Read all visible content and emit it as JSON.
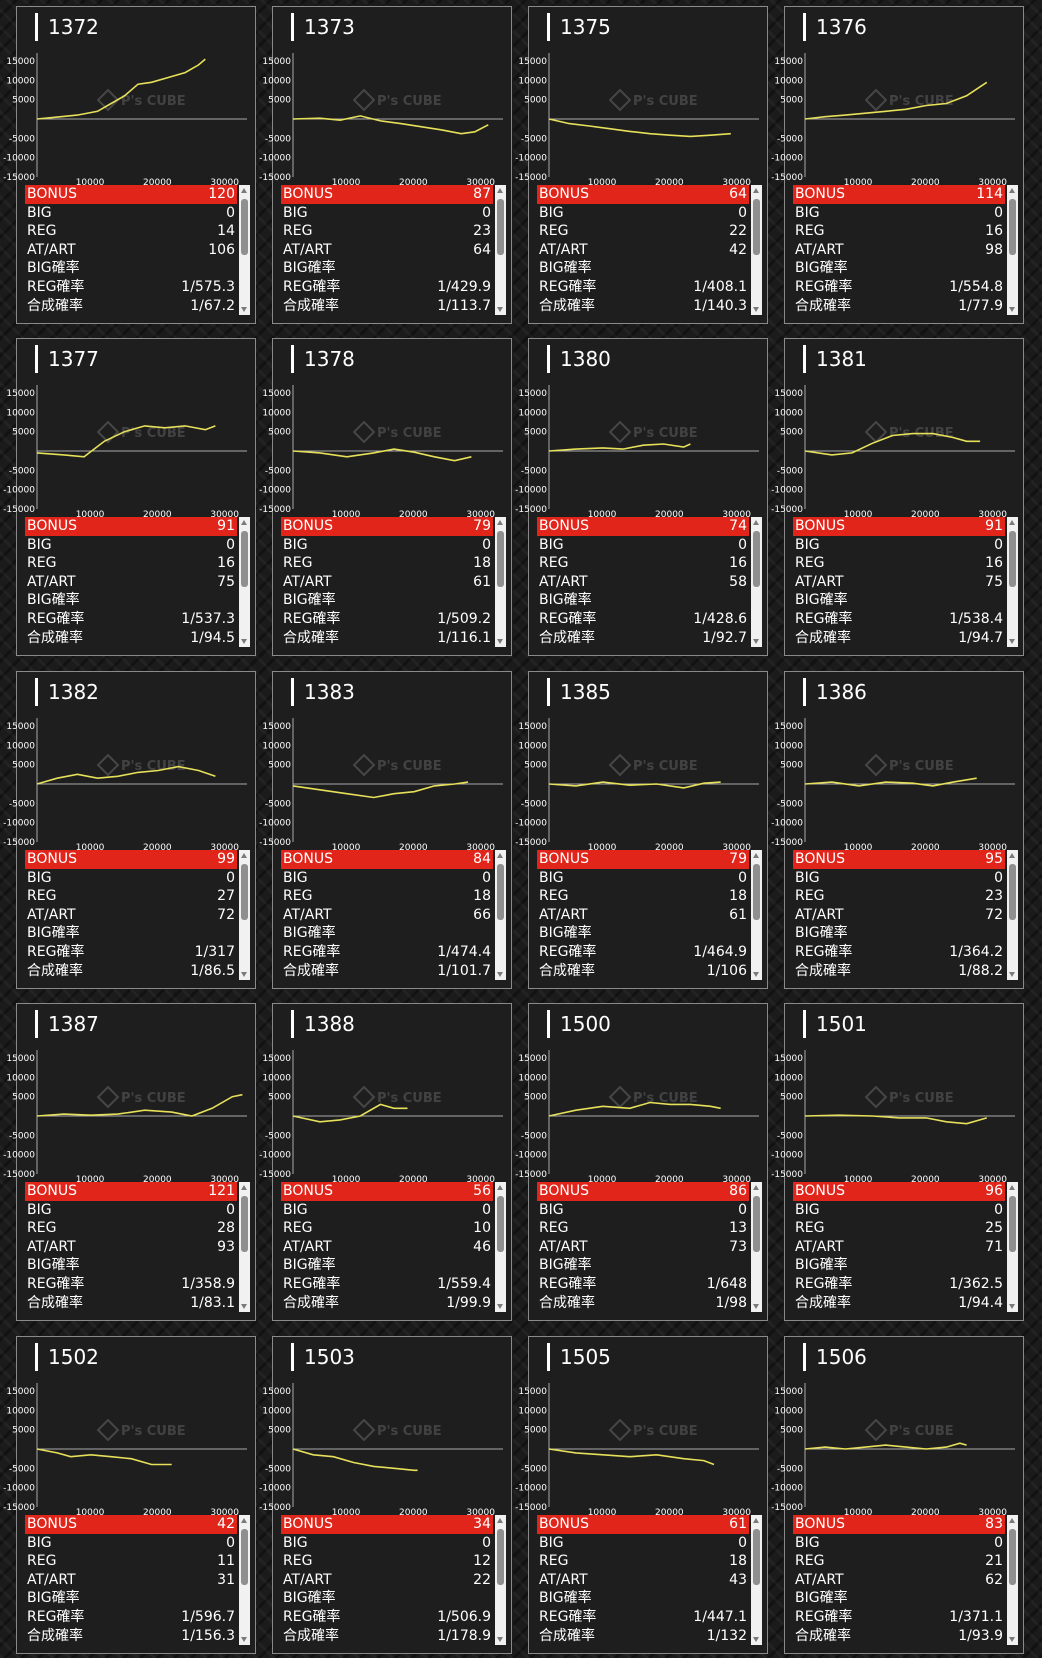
{
  "colors": {
    "accent_bonus": "#e1251b",
    "graph_line": "#e6e05a",
    "background": "#1b1b1b"
  },
  "watermark": {
    "text": "P's CUBE"
  },
  "labels": [
    "BONUS",
    "BIG",
    "REG",
    "AT/ART",
    "BIG確率",
    "REG確率",
    "合成確率"
  ],
  "machines": [
    {
      "id": "1372",
      "stats": {
        "bonus": "120",
        "big": "0",
        "reg": "14",
        "at_art": "106",
        "big_prob": "",
        "reg_prob": "1/575.3",
        "total_prob": "1/67.2"
      },
      "chart_data": {
        "type": "line",
        "x_ticks": [
          "10000",
          "20000",
          "30000"
        ],
        "y_ticks": [
          "15000",
          "10000",
          "5000",
          "-5000",
          "-10000",
          "-15000"
        ],
        "xlim": [
          0,
          30000
        ],
        "ylim": [
          -15000,
          15000
        ],
        "x": [
          0,
          3000,
          6000,
          9000,
          11000,
          13000,
          15000,
          17000,
          20000,
          22000,
          24000,
          25000
        ],
        "y": [
          0,
          500,
          1000,
          2000,
          4000,
          6000,
          9000,
          9500,
          11000,
          12000,
          14000,
          15500
        ]
      }
    },
    {
      "id": "1373",
      "stats": {
        "bonus": "87",
        "big": "0",
        "reg": "23",
        "at_art": "64",
        "big_prob": "",
        "reg_prob": "1/429.9",
        "total_prob": "1/113.7"
      },
      "chart_data": {
        "type": "line",
        "x_ticks": [
          "10000",
          "20000",
          "30000"
        ],
        "y_ticks": [
          "15000",
          "10000",
          "5000",
          "-5000",
          "-10000",
          "-15000"
        ],
        "xlim": [
          0,
          30000
        ],
        "ylim": [
          -15000,
          15000
        ],
        "x": [
          0,
          4000,
          7000,
          10000,
          13000,
          16000,
          19000,
          22000,
          25000,
          27000,
          29000
        ],
        "y": [
          0,
          200,
          -300,
          800,
          -500,
          -1200,
          -2000,
          -2800,
          -3800,
          -3300,
          -1500
        ]
      }
    },
    {
      "id": "1375",
      "stats": {
        "bonus": "64",
        "big": "0",
        "reg": "22",
        "at_art": "42",
        "big_prob": "",
        "reg_prob": "1/408.1",
        "total_prob": "1/140.3"
      },
      "chart_data": {
        "type": "line",
        "x_ticks": [
          "10000",
          "20000",
          "30000"
        ],
        "y_ticks": [
          "15000",
          "10000",
          "5000",
          "-5000",
          "-10000",
          "-15000"
        ],
        "xlim": [
          0,
          30000
        ],
        "ylim": [
          -15000,
          15000
        ],
        "x": [
          0,
          3000,
          6000,
          9000,
          12000,
          15000,
          18000,
          21000,
          24000,
          27000
        ],
        "y": [
          0,
          -1200,
          -1800,
          -2500,
          -3200,
          -3800,
          -4200,
          -4500,
          -4200,
          -3800
        ]
      }
    },
    {
      "id": "1376",
      "stats": {
        "bonus": "114",
        "big": "0",
        "reg": "16",
        "at_art": "98",
        "big_prob": "",
        "reg_prob": "1/554.8",
        "total_prob": "1/77.9"
      },
      "chart_data": {
        "type": "line",
        "x_ticks": [
          "10000",
          "20000",
          "30000"
        ],
        "y_ticks": [
          "15000",
          "10000",
          "5000",
          "-5000",
          "-10000",
          "-15000"
        ],
        "xlim": [
          0,
          30000
        ],
        "ylim": [
          -15000,
          15000
        ],
        "x": [
          0,
          3000,
          6000,
          9000,
          12000,
          15000,
          18000,
          21000,
          24000,
          27000
        ],
        "y": [
          0,
          600,
          1000,
          1500,
          2000,
          2500,
          3500,
          4000,
          6000,
          9500
        ]
      }
    },
    {
      "id": "1377",
      "stats": {
        "bonus": "91",
        "big": "0",
        "reg": "16",
        "at_art": "75",
        "big_prob": "",
        "reg_prob": "1/537.3",
        "total_prob": "1/94.5"
      },
      "chart_data": {
        "type": "line",
        "x_ticks": [
          "10000",
          "20000",
          "30000"
        ],
        "y_ticks": [
          "15000",
          "10000",
          "5000",
          "-5000",
          "-10000",
          "-15000"
        ],
        "xlim": [
          0,
          30000
        ],
        "ylim": [
          -15000,
          15000
        ],
        "x": [
          0,
          4000,
          7000,
          10000,
          13000,
          16000,
          19000,
          22000,
          25000,
          26500
        ],
        "y": [
          -500,
          -1000,
          -1500,
          2500,
          5000,
          6500,
          6000,
          6500,
          5500,
          6500
        ]
      }
    },
    {
      "id": "1378",
      "stats": {
        "bonus": "79",
        "big": "0",
        "reg": "18",
        "at_art": "61",
        "big_prob": "",
        "reg_prob": "1/509.2",
        "total_prob": "1/116.1"
      },
      "chart_data": {
        "type": "line",
        "x_ticks": [
          "10000",
          "20000",
          "30000"
        ],
        "y_ticks": [
          "15000",
          "10000",
          "5000",
          "-5000",
          "-10000",
          "-15000"
        ],
        "xlim": [
          0,
          30000
        ],
        "ylim": [
          -15000,
          15000
        ],
        "x": [
          0,
          4000,
          8000,
          12000,
          15000,
          18000,
          21000,
          24000,
          26500
        ],
        "y": [
          0,
          -500,
          -1500,
          -500,
          500,
          -300,
          -1500,
          -2500,
          -1500
        ]
      }
    },
    {
      "id": "1380",
      "stats": {
        "bonus": "74",
        "big": "0",
        "reg": "16",
        "at_art": "58",
        "big_prob": "",
        "reg_prob": "1/428.6",
        "total_prob": "1/92.7"
      },
      "chart_data": {
        "type": "line",
        "x_ticks": [
          "10000",
          "20000",
          "30000"
        ],
        "y_ticks": [
          "15000",
          "10000",
          "5000",
          "-5000",
          "-10000",
          "-15000"
        ],
        "xlim": [
          0,
          30000
        ],
        "ylim": [
          -15000,
          15000
        ],
        "x": [
          0,
          4000,
          8000,
          11000,
          14000,
          17000,
          20000,
          21000
        ],
        "y": [
          0,
          500,
          800,
          500,
          1500,
          1800,
          1000,
          1800
        ]
      }
    },
    {
      "id": "1381",
      "stats": {
        "bonus": "91",
        "big": "0",
        "reg": "16",
        "at_art": "75",
        "big_prob": "",
        "reg_prob": "1/538.4",
        "total_prob": "1/94.7"
      },
      "chart_data": {
        "type": "line",
        "x_ticks": [
          "10000",
          "20000",
          "30000"
        ],
        "y_ticks": [
          "15000",
          "10000",
          "5000",
          "-5000",
          "-10000",
          "-15000"
        ],
        "xlim": [
          0,
          30000
        ],
        "ylim": [
          -15000,
          15000
        ],
        "x": [
          0,
          4000,
          7000,
          10000,
          13000,
          16000,
          19000,
          22000,
          24000,
          26000
        ],
        "y": [
          0,
          -1000,
          -500,
          2000,
          4000,
          4500,
          4500,
          3500,
          2500,
          2500
        ]
      }
    },
    {
      "id": "1382",
      "stats": {
        "bonus": "99",
        "big": "0",
        "reg": "27",
        "at_art": "72",
        "big_prob": "",
        "reg_prob": "1/317",
        "total_prob": "1/86.5"
      },
      "chart_data": {
        "type": "line",
        "x_ticks": [
          "10000",
          "20000",
          "30000"
        ],
        "y_ticks": [
          "15000",
          "10000",
          "5000",
          "-5000",
          "-10000",
          "-15000"
        ],
        "xlim": [
          0,
          30000
        ],
        "ylim": [
          -15000,
          15000
        ],
        "x": [
          0,
          3000,
          6000,
          9000,
          12000,
          15000,
          18000,
          21000,
          24000,
          26500
        ],
        "y": [
          0,
          1500,
          2500,
          1500,
          2000,
          3000,
          3500,
          4500,
          3500,
          2000
        ]
      }
    },
    {
      "id": "1383",
      "stats": {
        "bonus": "84",
        "big": "0",
        "reg": "18",
        "at_art": "66",
        "big_prob": "",
        "reg_prob": "1/474.4",
        "total_prob": "1/101.7"
      },
      "chart_data": {
        "type": "line",
        "x_ticks": [
          "10000",
          "20000",
          "30000"
        ],
        "y_ticks": [
          "15000",
          "10000",
          "5000",
          "-5000",
          "-10000",
          "-15000"
        ],
        "xlim": [
          0,
          30000
        ],
        "ylim": [
          -15000,
          15000
        ],
        "x": [
          0,
          4000,
          8000,
          12000,
          15000,
          18000,
          21000,
          24000,
          26000
        ],
        "y": [
          -500,
          -1500,
          -2500,
          -3500,
          -2500,
          -2000,
          -500,
          0,
          500
        ]
      }
    },
    {
      "id": "1385",
      "stats": {
        "bonus": "79",
        "big": "0",
        "reg": "18",
        "at_art": "61",
        "big_prob": "",
        "reg_prob": "1/464.9",
        "total_prob": "1/106"
      },
      "chart_data": {
        "type": "line",
        "x_ticks": [
          "10000",
          "20000",
          "30000"
        ],
        "y_ticks": [
          "15000",
          "10000",
          "5000",
          "-5000",
          "-10000",
          "-15000"
        ],
        "xlim": [
          0,
          30000
        ],
        "ylim": [
          -15000,
          15000
        ],
        "x": [
          0,
          4000,
          8000,
          12000,
          16000,
          20000,
          23000,
          25500
        ],
        "y": [
          0,
          -500,
          500,
          -300,
          0,
          -1000,
          200,
          500
        ]
      }
    },
    {
      "id": "1386",
      "stats": {
        "bonus": "95",
        "big": "0",
        "reg": "23",
        "at_art": "72",
        "big_prob": "",
        "reg_prob": "1/364.2",
        "total_prob": "1/88.2"
      },
      "chart_data": {
        "type": "line",
        "x_ticks": [
          "10000",
          "20000",
          "30000"
        ],
        "y_ticks": [
          "15000",
          "10000",
          "5000",
          "-5000",
          "-10000",
          "-15000"
        ],
        "xlim": [
          0,
          30000
        ],
        "ylim": [
          -15000,
          15000
        ],
        "x": [
          0,
          4000,
          8000,
          12000,
          16000,
          19000,
          22000,
          25500
        ],
        "y": [
          0,
          500,
          -500,
          500,
          200,
          -500,
          500,
          1500
        ]
      }
    },
    {
      "id": "1387",
      "stats": {
        "bonus": "121",
        "big": "0",
        "reg": "28",
        "at_art": "93",
        "big_prob": "",
        "reg_prob": "1/358.9",
        "total_prob": "1/83.1"
      },
      "chart_data": {
        "type": "line",
        "x_ticks": [
          "10000",
          "20000",
          "30000"
        ],
        "y_ticks": [
          "15000",
          "10000",
          "5000",
          "-5000",
          "-10000",
          "-15000"
        ],
        "xlim": [
          0,
          30000
        ],
        "ylim": [
          -15000,
          15000
        ],
        "x": [
          0,
          4000,
          8000,
          12000,
          16000,
          20000,
          23000,
          26000,
          29000,
          30500
        ],
        "y": [
          0,
          500,
          200,
          500,
          1500,
          1000,
          0,
          2000,
          5000,
          5500
        ]
      }
    },
    {
      "id": "1388",
      "stats": {
        "bonus": "56",
        "big": "0",
        "reg": "10",
        "at_art": "46",
        "big_prob": "",
        "reg_prob": "1/559.4",
        "total_prob": "1/99.9"
      },
      "chart_data": {
        "type": "line",
        "x_ticks": [
          "10000",
          "20000",
          "30000"
        ],
        "y_ticks": [
          "15000",
          "10000",
          "5000",
          "-5000",
          "-10000",
          "-15000"
        ],
        "xlim": [
          0,
          30000
        ],
        "ylim": [
          -15000,
          15000
        ],
        "x": [
          0,
          4000,
          7000,
          10000,
          13000,
          15000,
          17000
        ],
        "y": [
          0,
          -1500,
          -1000,
          0,
          3000,
          2000,
          2000
        ]
      }
    },
    {
      "id": "1500",
      "stats": {
        "bonus": "86",
        "big": "0",
        "reg": "13",
        "at_art": "73",
        "big_prob": "",
        "reg_prob": "1/648",
        "total_prob": "1/98"
      },
      "chart_data": {
        "type": "line",
        "x_ticks": [
          "10000",
          "20000",
          "30000"
        ],
        "y_ticks": [
          "15000",
          "10000",
          "5000",
          "-5000",
          "-10000",
          "-15000"
        ],
        "xlim": [
          0,
          30000
        ],
        "ylim": [
          -15000,
          15000
        ],
        "x": [
          0,
          4000,
          8000,
          12000,
          15000,
          18000,
          21000,
          24000,
          25500
        ],
        "y": [
          0,
          1500,
          2500,
          2000,
          3500,
          3000,
          3000,
          2500,
          2000
        ]
      }
    },
    {
      "id": "1501",
      "stats": {
        "bonus": "96",
        "big": "0",
        "reg": "25",
        "at_art": "71",
        "big_prob": "",
        "reg_prob": "1/362.5",
        "total_prob": "1/94.4"
      },
      "chart_data": {
        "type": "line",
        "x_ticks": [
          "10000",
          "20000",
          "30000"
        ],
        "y_ticks": [
          "15000",
          "10000",
          "5000",
          "-5000",
          "-10000",
          "-15000"
        ],
        "xlim": [
          0,
          30000
        ],
        "ylim": [
          -15000,
          15000
        ],
        "x": [
          0,
          5000,
          10000,
          14000,
          18000,
          21000,
          24000,
          27000
        ],
        "y": [
          0,
          200,
          0,
          -500,
          -500,
          -1500,
          -2000,
          -500
        ]
      }
    },
    {
      "id": "1502",
      "stats": {
        "bonus": "42",
        "big": "0",
        "reg": "11",
        "at_art": "31",
        "big_prob": "",
        "reg_prob": "1/596.7",
        "total_prob": "1/156.3"
      },
      "chart_data": {
        "type": "line",
        "x_ticks": [
          "10000",
          "20000",
          "30000"
        ],
        "y_ticks": [
          "15000",
          "10000",
          "5000",
          "-5000",
          "-10000",
          "-15000"
        ],
        "xlim": [
          0,
          30000
        ],
        "ylim": [
          -15000,
          15000
        ],
        "x": [
          0,
          3000,
          5000,
          8000,
          11000,
          14000,
          17000,
          20000
        ],
        "y": [
          0,
          -1000,
          -2000,
          -1500,
          -2000,
          -2500,
          -4000,
          -4000
        ]
      }
    },
    {
      "id": "1503",
      "stats": {
        "bonus": "34",
        "big": "0",
        "reg": "12",
        "at_art": "22",
        "big_prob": "",
        "reg_prob": "1/506.9",
        "total_prob": "1/178.9"
      },
      "chart_data": {
        "type": "line",
        "x_ticks": [
          "10000",
          "20000",
          "30000"
        ],
        "y_ticks": [
          "15000",
          "10000",
          "5000",
          "-5000",
          "-10000",
          "-15000"
        ],
        "xlim": [
          0,
          30000
        ],
        "ylim": [
          -15000,
          15000
        ],
        "x": [
          0,
          3000,
          6000,
          9000,
          12000,
          15000,
          18000,
          18500
        ],
        "y": [
          0,
          -1500,
          -2000,
          -3500,
          -4500,
          -5000,
          -5500,
          -5500
        ]
      }
    },
    {
      "id": "1505",
      "stats": {
        "bonus": "61",
        "big": "0",
        "reg": "18",
        "at_art": "43",
        "big_prob": "",
        "reg_prob": "1/447.1",
        "total_prob": "1/132"
      },
      "chart_data": {
        "type": "line",
        "x_ticks": [
          "10000",
          "20000",
          "30000"
        ],
        "y_ticks": [
          "15000",
          "10000",
          "5000",
          "-5000",
          "-10000",
          "-15000"
        ],
        "xlim": [
          0,
          30000
        ],
        "ylim": [
          -15000,
          15000
        ],
        "x": [
          0,
          4000,
          8000,
          12000,
          16000,
          20000,
          23000,
          24500
        ],
        "y": [
          0,
          -1000,
          -1500,
          -2000,
          -1500,
          -2500,
          -3000,
          -4000
        ]
      }
    },
    {
      "id": "1506",
      "stats": {
        "bonus": "83",
        "big": "0",
        "reg": "21",
        "at_art": "62",
        "big_prob": "",
        "reg_prob": "1/371.1",
        "total_prob": "1/93.9"
      },
      "chart_data": {
        "type": "line",
        "x_ticks": [
          "10000",
          "20000",
          "30000"
        ],
        "y_ticks": [
          "15000",
          "10000",
          "5000",
          "-5000",
          "-10000",
          "-15000"
        ],
        "xlim": [
          0,
          30000
        ],
        "ylim": [
          -15000,
          15000
        ],
        "x": [
          0,
          3000,
          6000,
          9000,
          12000,
          15000,
          18000,
          21000,
          23000,
          24000
        ],
        "y": [
          0,
          500,
          0,
          500,
          1000,
          500,
          0,
          500,
          1500,
          1000
        ]
      }
    }
  ]
}
